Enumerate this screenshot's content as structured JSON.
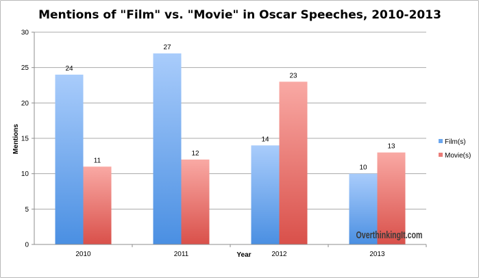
{
  "chart_data": {
    "type": "bar",
    "title": "Mentions of \"Film\" vs. \"Movie\" in Oscar Speeches, 2010-2013",
    "xlabel": "Year",
    "ylabel": "Mentions",
    "categories": [
      "2010",
      "2011",
      "2012",
      "2013"
    ],
    "series": [
      {
        "name": "Film(s)",
        "values": [
          24,
          27,
          14,
          10
        ],
        "color": "#6aa6ee"
      },
      {
        "name": "Movie(s)",
        "values": [
          11,
          12,
          23,
          13
        ],
        "color": "#ea7c78"
      }
    ],
    "ylim": [
      0,
      30
    ],
    "yticks": [
      0,
      5,
      10,
      15,
      20,
      25,
      30
    ],
    "grid": true,
    "legend": "right",
    "data_labels": true
  },
  "watermark": "OverthinkingIt.com"
}
